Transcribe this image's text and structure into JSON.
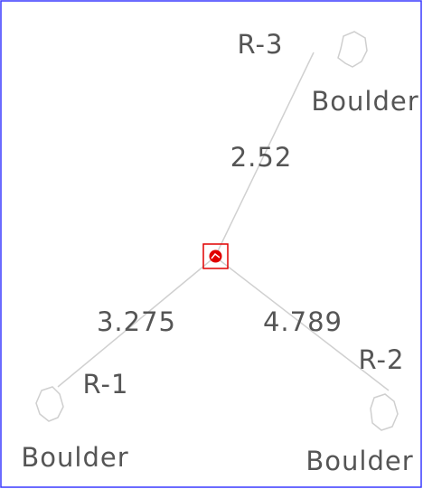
{
  "nodes": [
    {
      "label": "R-1",
      "note": "Boulder"
    },
    {
      "label": "R-2",
      "note": "Boulder"
    },
    {
      "label": "R-3",
      "note": "Boulder"
    }
  ],
  "edges": [
    {
      "label": "3.275"
    },
    {
      "label": "4.789"
    },
    {
      "label": "2.52"
    }
  ]
}
